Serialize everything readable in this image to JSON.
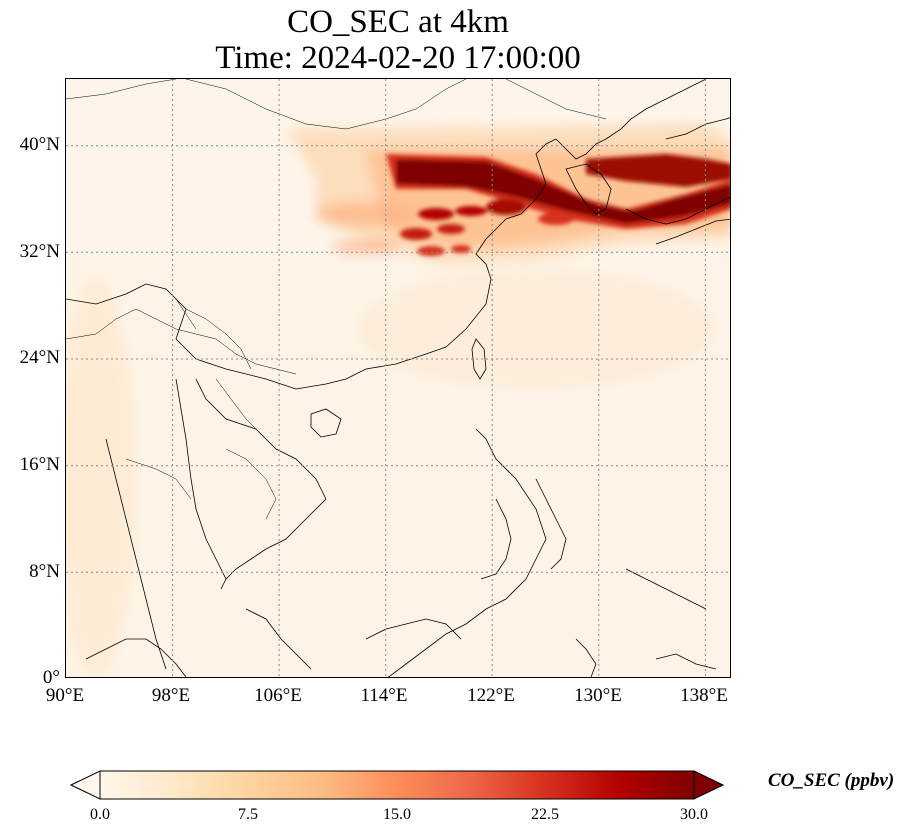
{
  "title": {
    "line1": "CO_SEC at 4km",
    "line2": "Time: 2024-02-20 17:00:00"
  },
  "map": {
    "lon_range": [
      90,
      140
    ],
    "lat_range": [
      0,
      45
    ],
    "x_ticks": [
      "90°E",
      "98°E",
      "106°E",
      "114°E",
      "122°E",
      "130°E",
      "138°E"
    ],
    "x_tick_values": [
      90,
      98,
      106,
      114,
      122,
      130,
      138
    ],
    "y_ticks": [
      "0°",
      "8°N",
      "16°N",
      "24°N",
      "32°N",
      "40°N"
    ],
    "y_tick_values": [
      0,
      8,
      16,
      24,
      32,
      40
    ],
    "gridlines": "dotted",
    "background_color": "#fdf5ea",
    "plume_color_max": "#7f0000",
    "plume_color_mid": "#d7301f",
    "plume_color_low": "#fdbb84"
  },
  "colorbar": {
    "label": "CO_SEC (ppbv)",
    "ticks": [
      "0.0",
      "7.5",
      "15.0",
      "22.5",
      "30.0"
    ],
    "tick_values": [
      0,
      7.5,
      15,
      22.5,
      30
    ],
    "range": [
      0,
      30
    ],
    "colormap": "OrRd",
    "colors": [
      "#fff7ec",
      "#fee8c8",
      "#fdd49e",
      "#fdbb84",
      "#fc8d59",
      "#ef6548",
      "#d7301f",
      "#b30000",
      "#7f0000"
    ]
  }
}
